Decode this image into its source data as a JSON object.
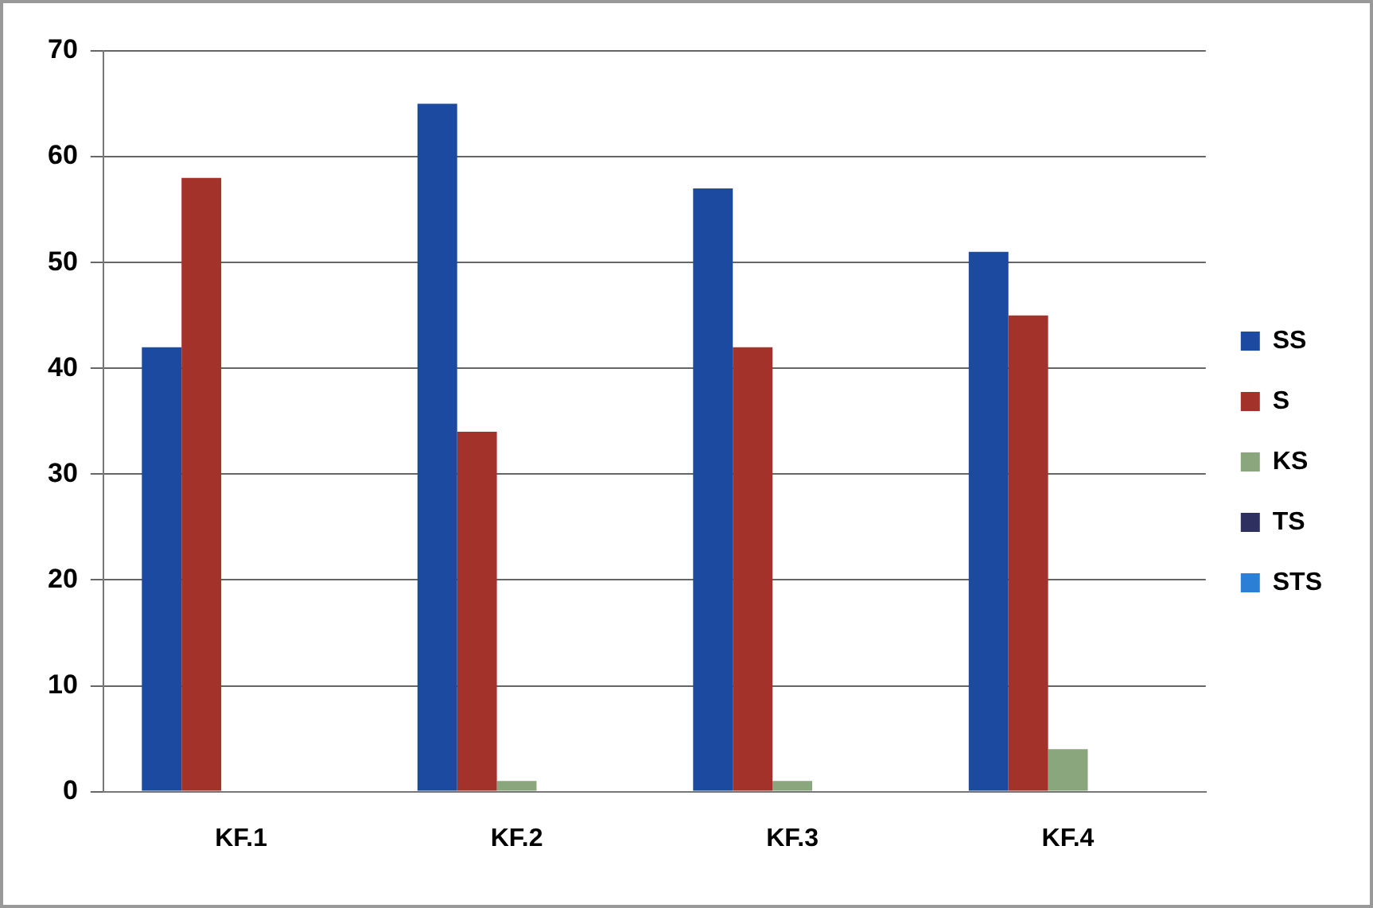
{
  "chart_data": {
    "type": "bar",
    "categories": [
      "KF.1",
      "KF.2",
      "KF.3",
      "KF.4"
    ],
    "series": [
      {
        "name": "SS",
        "color": "#1c4aa0",
        "values": [
          42,
          65,
          57,
          51
        ]
      },
      {
        "name": "S",
        "color": "#a3322a",
        "values": [
          58,
          34,
          42,
          45
        ]
      },
      {
        "name": "KS",
        "color": "#8aa67c",
        "values": [
          0,
          1,
          1,
          4
        ]
      },
      {
        "name": "TS",
        "color": "#2e3060",
        "values": [
          0,
          0,
          0,
          0
        ]
      },
      {
        "name": "STS",
        "color": "#2b7fd4",
        "values": [
          0,
          0,
          0,
          0
        ]
      }
    ],
    "ylim": [
      0,
      70
    ],
    "yticks": [
      0,
      10,
      20,
      30,
      40,
      50,
      60,
      70
    ],
    "grid": "y",
    "legend": "right"
  }
}
